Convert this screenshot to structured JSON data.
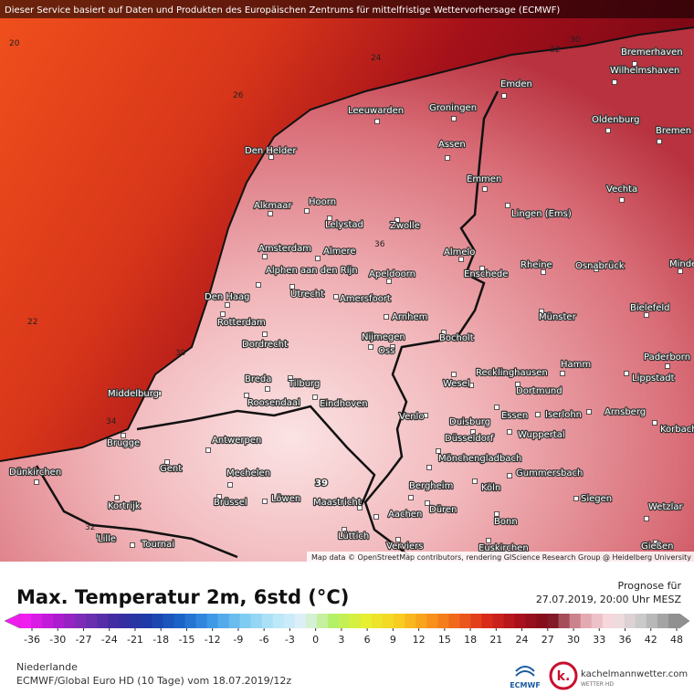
{
  "header": {
    "notice": "Dieser Service basiert auf Daten und Produkten des Europäischen Zentrums für mittelfristige Wettervorhersage (ECMWF)"
  },
  "map": {
    "cities": [
      "Bremerhaven",
      "Wilhelmshaven",
      "Emden",
      "Leeuwarden",
      "Groningen",
      "Oldenburg",
      "Bremen",
      "Den Helder",
      "Assen",
      "Vechta",
      "Emmen",
      "Alkmaar",
      "Hoorn",
      "Lelystad",
      "Zwolle",
      "Lingen (Ems)",
      "Amsterdam",
      "Almere",
      "Almelo",
      "Rheine",
      "Osnabrück",
      "Minden",
      "Apeldoorn",
      "Enschede",
      "Alphen aan den Rijn",
      "Utrecht",
      "Amersfoort",
      "Den Haag",
      "Bielefeld",
      "Rotterdam",
      "Arnhem",
      "Münster",
      "Nijmegen",
      "Bocholt",
      "Dordrecht",
      "Oss",
      "Paderborn",
      "Hamm",
      "Middelburg",
      "Breda",
      "Tilburg",
      "Recklinghausen",
      "Lippstadt",
      "Wesel",
      "Dortmund",
      "Roosendaal",
      "Eindhoven",
      "Arnsberg",
      "Venlo",
      "Essen",
      "Iserlohn",
      "Duisburg",
      "Korbach",
      "Wuppertal",
      "Antwerpen",
      "Brugge",
      "Düsseldorf",
      "Mönchengladbach",
      "Gent",
      "Dünkirchen",
      "Mechelen",
      "Gummersbach",
      "Bergheim",
      "Köln",
      "Kortrijk",
      "Brüssel",
      "Löwen",
      "Maastricht",
      "Düren",
      "Siegen",
      "Aachen",
      "Bonn",
      "Wetzlar",
      "Lüttich",
      "Lille",
      "Tournai",
      "Verviers",
      "Euskirchen",
      "Gießen"
    ],
    "contour_labels": [
      20,
      24,
      30,
      32,
      26,
      36,
      22,
      30,
      34,
      32,
      39
    ],
    "attribution": "Map data © OpenStreetMap contributors, rendering GIScience Research Group @ Heidelberg University"
  },
  "footer": {
    "title": "Max. Temperatur 2m, 6std (°C)",
    "forecast_label": "Prognose für",
    "forecast_time": "27.07.2019, 20:00 Uhr MESZ",
    "colorbar_ticks": [
      -36,
      -30,
      -27,
      -24,
      -21,
      -18,
      -15,
      -12,
      -9,
      -6,
      -3,
      0,
      3,
      6,
      9,
      12,
      15,
      18,
      21,
      24,
      27,
      30,
      33,
      36,
      42,
      48
    ],
    "region": "Niederlande",
    "model": "ECMWF/Global Euro HD (10 Tage) vom 18.07.2019/12z",
    "ecmwf_logo": "ECMWF",
    "brand": "kachelmannwetter.com",
    "brand_sub": "WETTER HD",
    "brand_icon": "k."
  }
}
